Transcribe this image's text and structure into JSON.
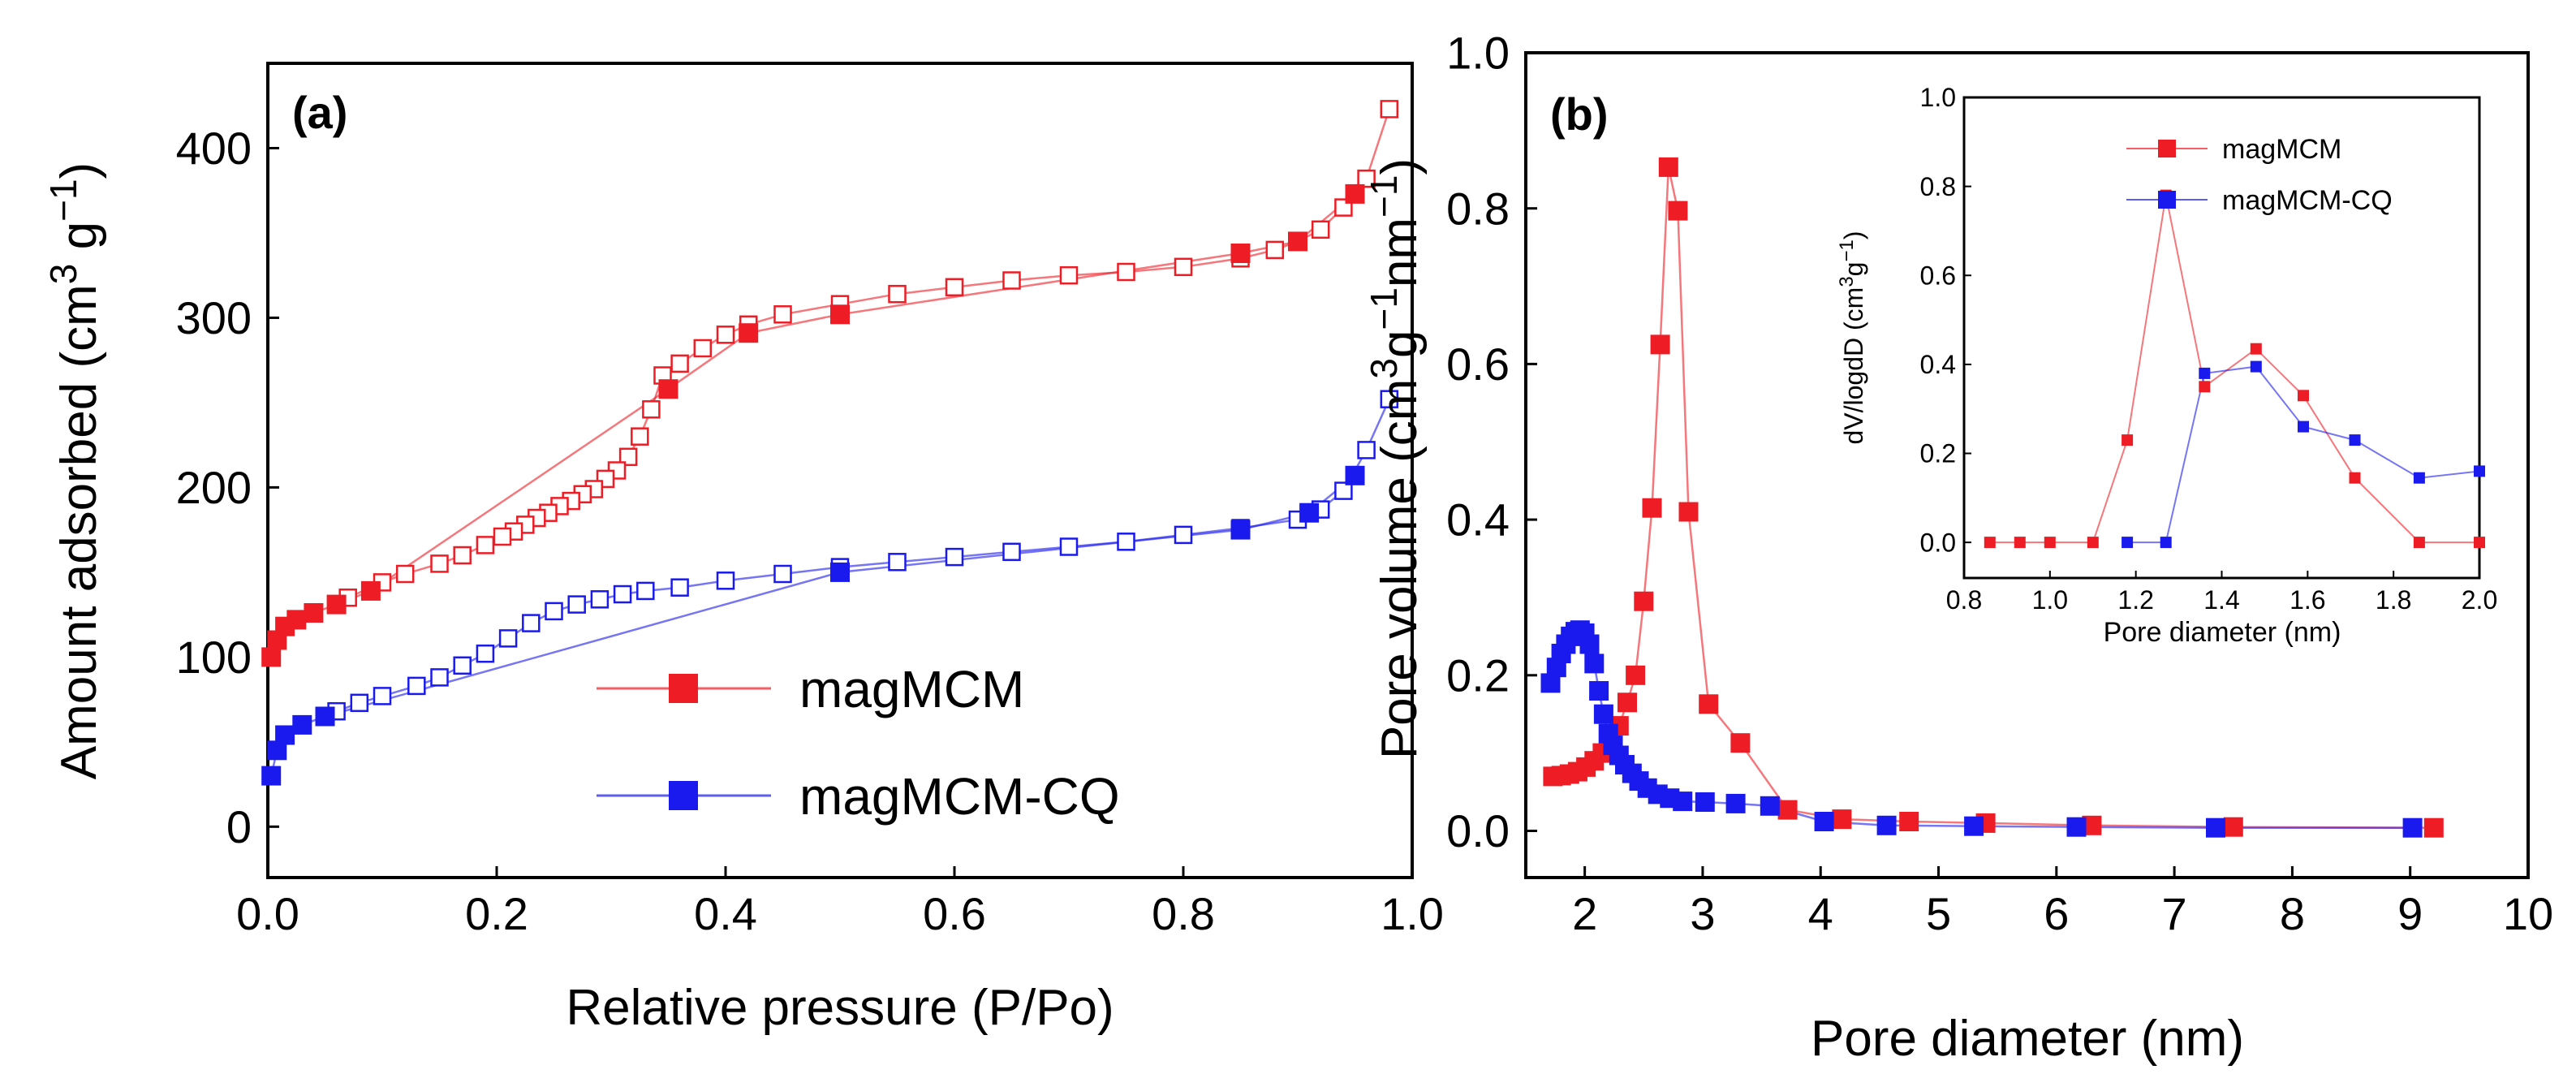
{
  "chart_data": [
    {
      "id": "a",
      "type": "line",
      "panel_label": "(a)",
      "xlabel": "Relative pressure (P/Po)",
      "ylabel_parts": [
        "Amount adsorbed (cm",
        "3",
        " g",
        "−1",
        ")"
      ],
      "xlim": [
        0,
        1.0
      ],
      "ylim": [
        -30,
        450
      ],
      "xticks": [
        0.0,
        0.2,
        0.4,
        0.6,
        0.8,
        1.0
      ],
      "yticks": [
        0,
        100,
        200,
        300,
        400
      ],
      "xtick_labels": [
        "0.0",
        "0.2",
        "0.4",
        "0.6",
        "0.8",
        "1.0"
      ],
      "ytick_labels": [
        "0",
        "100",
        "200",
        "300",
        "400"
      ],
      "legend_position": "bottom-right",
      "series": [
        {
          "name": "magMCM",
          "color": "#ee1c25",
          "adsorption": {
            "x": [
              0.003,
              0.008,
              0.015,
              0.025,
              0.04,
              0.06,
              0.09,
              0.35,
              0.42,
              0.5,
              0.85,
              0.9,
              0.95
            ],
            "y": [
              100,
              110,
              118,
              122,
              126,
              131,
              139,
              258,
              291,
              302,
              338,
              345,
              373
            ]
          },
          "desorption": {
            "x": [
              0.98,
              0.96,
              0.94,
              0.92,
              0.9,
              0.88,
              0.85,
              0.8,
              0.75,
              0.7,
              0.65,
              0.6,
              0.55,
              0.5,
              0.45,
              0.42,
              0.4,
              0.38,
              0.36,
              0.345,
              0.335,
              0.325,
              0.315,
              0.305,
              0.295,
              0.285,
              0.275,
              0.265,
              0.255,
              0.245,
              0.235,
              0.225,
              0.215,
              0.205,
              0.19,
              0.17,
              0.15,
              0.12,
              0.1,
              0.07
            ],
            "y": [
              423,
              382,
              365,
              352,
              345,
              340,
              335,
              330,
              327,
              325,
              322,
              318,
              314,
              308,
              302,
              296,
              290,
              282,
              273,
              266,
              246,
              230,
              218,
              210,
              205,
              199,
              196,
              192,
              189,
              185,
              182,
              178,
              174,
              171,
              166,
              160,
              155,
              149,
              144,
              135
            ]
          }
        },
        {
          "name": "magMCM-CQ",
          "color": "#1a1aef",
          "adsorption": {
            "x": [
              0.003,
              0.008,
              0.015,
              0.03,
              0.05,
              0.5,
              0.85,
              0.91,
              0.95
            ],
            "y": [
              30,
              45,
              54,
              60,
              65,
              150,
              175,
              185,
              207
            ]
          },
          "desorption": {
            "x": [
              0.98,
              0.96,
              0.94,
              0.92,
              0.9,
              0.85,
              0.8,
              0.75,
              0.7,
              0.65,
              0.6,
              0.55,
              0.5,
              0.45,
              0.4,
              0.36,
              0.33,
              0.31,
              0.29,
              0.27,
              0.25,
              0.23,
              0.21,
              0.19,
              0.17,
              0.15,
              0.13,
              0.1,
              0.08,
              0.06
            ],
            "y": [
              252,
              222,
              198,
              187,
              181,
              176,
              172,
              168,
              165,
              162,
              159,
              156,
              153,
              149,
              145,
              141,
              139,
              137,
              134,
              131,
              127,
              120,
              111,
              102,
              95,
              88,
              83,
              77,
              73,
              68
            ]
          }
        }
      ]
    },
    {
      "id": "b",
      "type": "line",
      "panel_label": "(b)",
      "xlabel": "Pore diameter (nm)",
      "ylabel_parts": [
        "Pore volume (cm",
        "3",
        "g",
        "−1",
        "nm",
        "−1",
        ")"
      ],
      "xlim": [
        1.5,
        10
      ],
      "ylim": [
        -0.06,
        1.0
      ],
      "xticks": [
        2,
        3,
        4,
        5,
        6,
        7,
        8,
        9,
        10
      ],
      "yticks": [
        0.0,
        0.2,
        0.4,
        0.6,
        0.8,
        1.0
      ],
      "xtick_labels": [
        "2",
        "3",
        "4",
        "5",
        "6",
        "7",
        "8",
        "9",
        "10"
      ],
      "ytick_labels": [
        "0.0",
        "0.2",
        "0.4",
        "0.6",
        "0.8",
        "1.0"
      ],
      "series": [
        {
          "name": "magMCM",
          "color": "#ee1c25",
          "x": [
            1.73,
            1.8,
            1.87,
            1.94,
            2.01,
            2.08,
            2.15,
            2.22,
            2.29,
            2.36,
            2.43,
            2.5,
            2.57,
            2.64,
            2.71,
            2.79,
            2.88,
            3.05,
            3.32,
            3.72,
            4.18,
            4.75,
            5.4,
            6.3,
            7.5,
            9.2
          ],
          "y": [
            0.07,
            0.071,
            0.073,
            0.076,
            0.082,
            0.09,
            0.1,
            0.115,
            0.135,
            0.165,
            0.2,
            0.295,
            0.415,
            0.625,
            0.853,
            0.797,
            0.41,
            0.163,
            0.113,
            0.027,
            0.015,
            0.012,
            0.01,
            0.007,
            0.005,
            0.004
          ]
        },
        {
          "name": "magMCM-CQ",
          "color": "#1a1aef",
          "x": [
            1.71,
            1.76,
            1.8,
            1.84,
            1.88,
            1.92,
            1.96,
            2.0,
            2.04,
            2.08,
            2.12,
            2.16,
            2.2,
            2.24,
            2.29,
            2.34,
            2.4,
            2.46,
            2.53,
            2.62,
            2.72,
            2.83,
            3.02,
            3.28,
            3.57,
            4.03,
            4.56,
            5.3,
            6.17,
            7.35,
            9.02
          ],
          "y": [
            0.19,
            0.21,
            0.228,
            0.24,
            0.25,
            0.256,
            0.258,
            0.254,
            0.24,
            0.215,
            0.18,
            0.15,
            0.125,
            0.11,
            0.097,
            0.085,
            0.074,
            0.064,
            0.055,
            0.047,
            0.042,
            0.038,
            0.037,
            0.035,
            0.032,
            0.012,
            0.007,
            0.006,
            0.005,
            0.004,
            0.004
          ]
        }
      ],
      "inset": {
        "type": "line",
        "xlabel": "Pore diameter (nm)",
        "ylabel_parts": [
          "dV/logdD (cm",
          "3",
          "g",
          "−1",
          ")"
        ],
        "xlim": [
          0.8,
          2.0
        ],
        "ylim": [
          -0.08,
          1.0
        ],
        "xticks": [
          0.8,
          1.0,
          1.2,
          1.4,
          1.6,
          1.8,
          2.0
        ],
        "yticks": [
          0.0,
          0.2,
          0.4,
          0.6,
          0.8,
          1.0
        ],
        "xtick_labels": [
          "0.8",
          "1.0",
          "1.2",
          "1.4",
          "1.6",
          "1.8",
          "2.0"
        ],
        "ytick_labels": [
          "0.0",
          "0.2",
          "0.4",
          "0.6",
          "0.8",
          "1.0"
        ],
        "legend_position": "top-right",
        "series": [
          {
            "name": "magMCM",
            "color": "#ee1c25",
            "x": [
              0.86,
              0.93,
              1.0,
              1.1,
              1.18,
              1.27,
              1.36,
              1.48,
              1.59,
              1.71,
              1.86,
              2.0
            ],
            "y": [
              0.0,
              0.0,
              0.0,
              0.0,
              0.23,
              0.78,
              0.35,
              0.435,
              0.33,
              0.145,
              0.0,
              0.0
            ]
          },
          {
            "name": "magMCM-CQ",
            "color": "#1a1aef",
            "x": [
              1.18,
              1.27,
              1.36,
              1.48,
              1.59,
              1.71,
              1.86,
              2.0
            ],
            "y": [
              0.0,
              0.0,
              0.38,
              0.395,
              0.26,
              0.23,
              0.145,
              0.16
            ]
          }
        ]
      }
    }
  ]
}
